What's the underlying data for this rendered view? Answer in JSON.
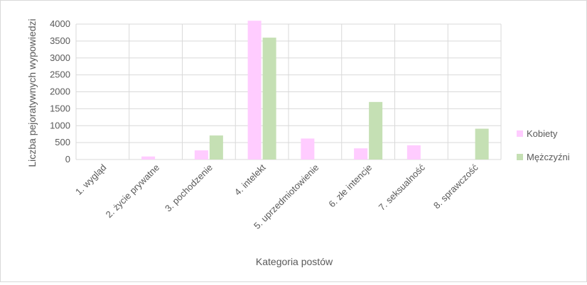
{
  "chart_data": {
    "type": "bar",
    "categories": [
      "1. wygląd",
      "2. życie prywatne",
      "3. pochodzenie",
      "4. intelekt",
      "5. uprzedmiotowienie",
      "6. złe intencje",
      "7. seksualność",
      "8. sprawczość"
    ],
    "series": [
      {
        "name": "Kobiety",
        "color": "#ffccff",
        "values": [
          0,
          90,
          270,
          4100,
          620,
          330,
          420,
          0
        ]
      },
      {
        "name": "Mężczyźni",
        "color": "#c5e0b4",
        "values": [
          0,
          0,
          710,
          3600,
          0,
          1700,
          0,
          910
        ]
      }
    ],
    "xlabel": "Kategoria postów",
    "ylabel": "Liczba pejoratywnych wypowiedzi",
    "ylim": [
      0,
      4000
    ],
    "yticks": [
      0,
      500,
      1000,
      1500,
      2000,
      2500,
      3000,
      3500,
      4000
    ],
    "grid": true,
    "legend_position": "right"
  }
}
